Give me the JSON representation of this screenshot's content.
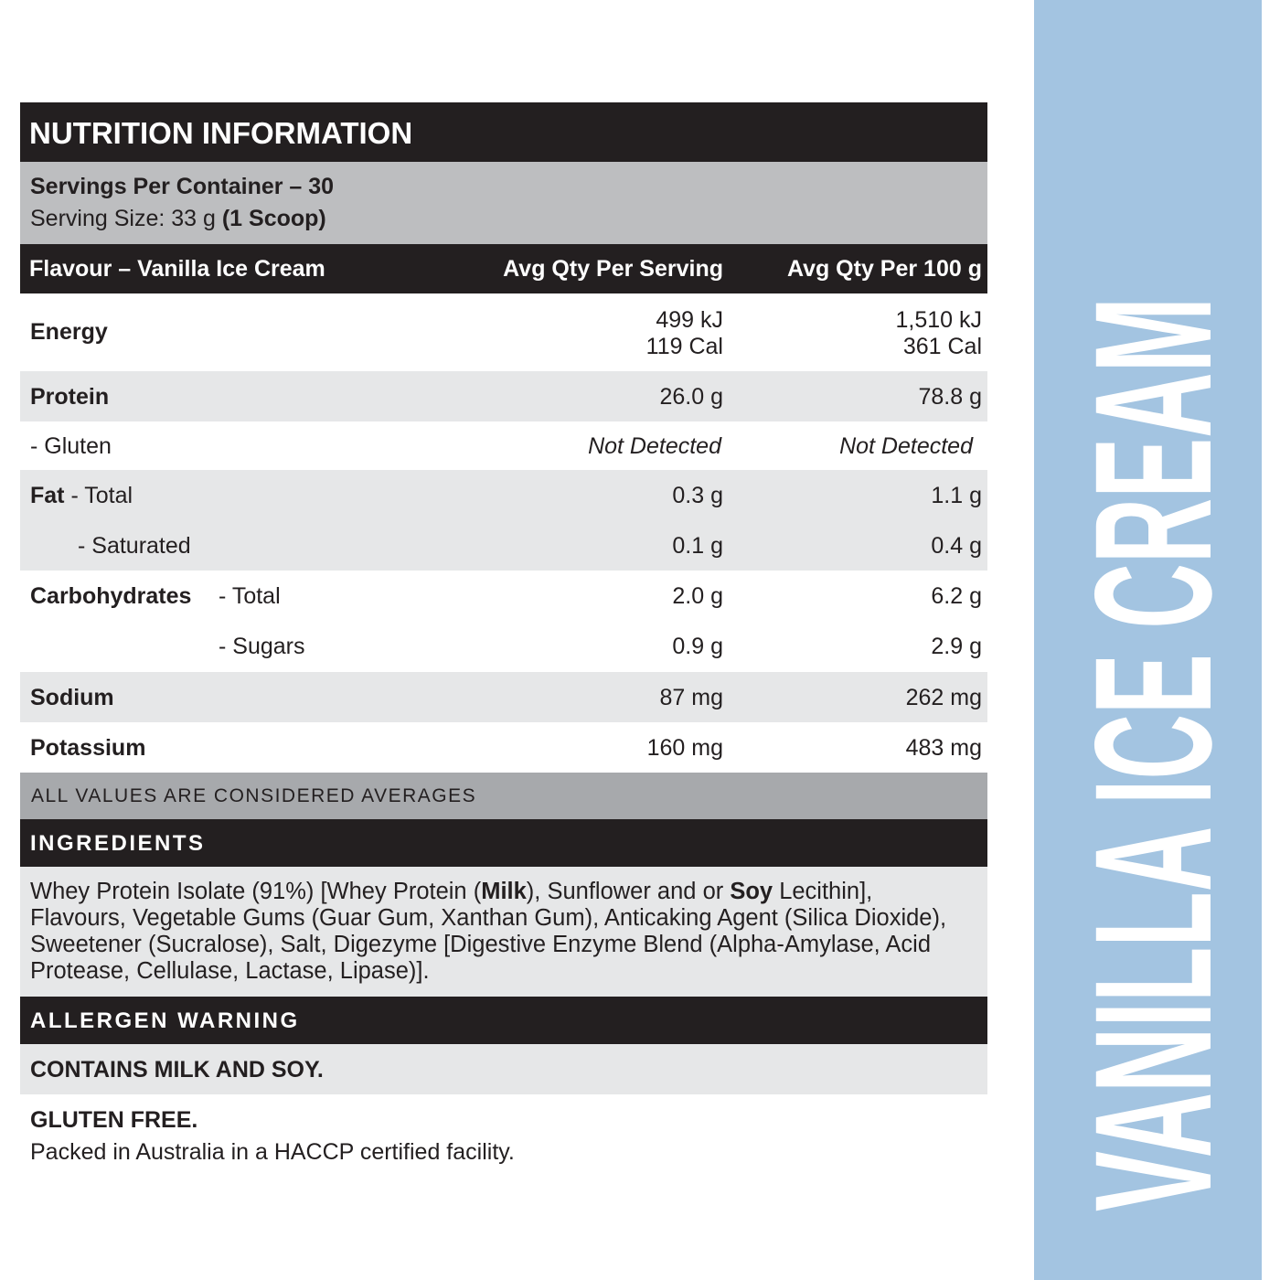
{
  "header": {
    "title": "NUTRITION INFORMATION"
  },
  "servings": {
    "per_container": "Servings Per Container – 30",
    "size": "Serving Size: 33 g",
    "size_note": "(1 Scoop)"
  },
  "table": {
    "columns": [
      "Flavour – Vanilla Ice Cream",
      "Avg Qty Per Serving",
      "Avg Qty Per 100 g"
    ],
    "rows": [
      {
        "label": "Energy",
        "serving": [
          "499 kJ",
          "119 Cal"
        ],
        "per_100g": [
          "1,510 kJ",
          "361 Cal"
        ]
      },
      {
        "label": "Protein",
        "serving": "26.0 g",
        "per_100g": "78.8 g"
      },
      {
        "label": "- Gluten",
        "serving": "Not Detected",
        "per_100g": "Not Detected"
      },
      {
        "label": "Fat",
        "sublabel": "- Total",
        "serving": "0.3 g",
        "per_100g": "1.1 g"
      },
      {
        "sublabel": "- Saturated",
        "serving": "0.1 g",
        "per_100g": "0.4 g"
      },
      {
        "label": "Carbohydrates",
        "sublabel": "- Total",
        "serving": "2.0 g",
        "per_100g": "6.2 g"
      },
      {
        "sublabel": "- Sugars",
        "serving": "0.9 g",
        "per_100g": "2.9 g"
      },
      {
        "label": "Sodium",
        "serving": "87 mg",
        "per_100g": "262 mg"
      },
      {
        "label": "Potassium",
        "serving": "160 mg",
        "per_100g": "483 mg"
      }
    ],
    "footnote": "ALL VALUES ARE CONSIDERED AVERAGES"
  },
  "ingredients": {
    "title": "INGREDIENTS",
    "text": [
      "Whey Protein Isolate (91%) [Whey Protein (",
      "Milk",
      "), Sunflower and or ",
      "Soy",
      " Lecithin], Flavours, Vegetable Gums (Guar Gum, Xanthan Gum),  Anticaking Agent (Silica Dioxide), Sweetener (Sucralose), Salt,  Digezyme  [Digestive Enzyme Blend (Alpha-Amylase, Acid Protease, Cellulase, Lactase, Lipase)]."
    ]
  },
  "allergen": {
    "title": "ALLERGEN WARNING",
    "statement": "CONTAINS MILK AND SOY."
  },
  "footer": {
    "gluten": "GLUTEN FREE.",
    "facility": "Packed in Australia in a HACCP certified facility."
  },
  "side": {
    "flavour": "VANILLA ICE CREAM"
  }
}
